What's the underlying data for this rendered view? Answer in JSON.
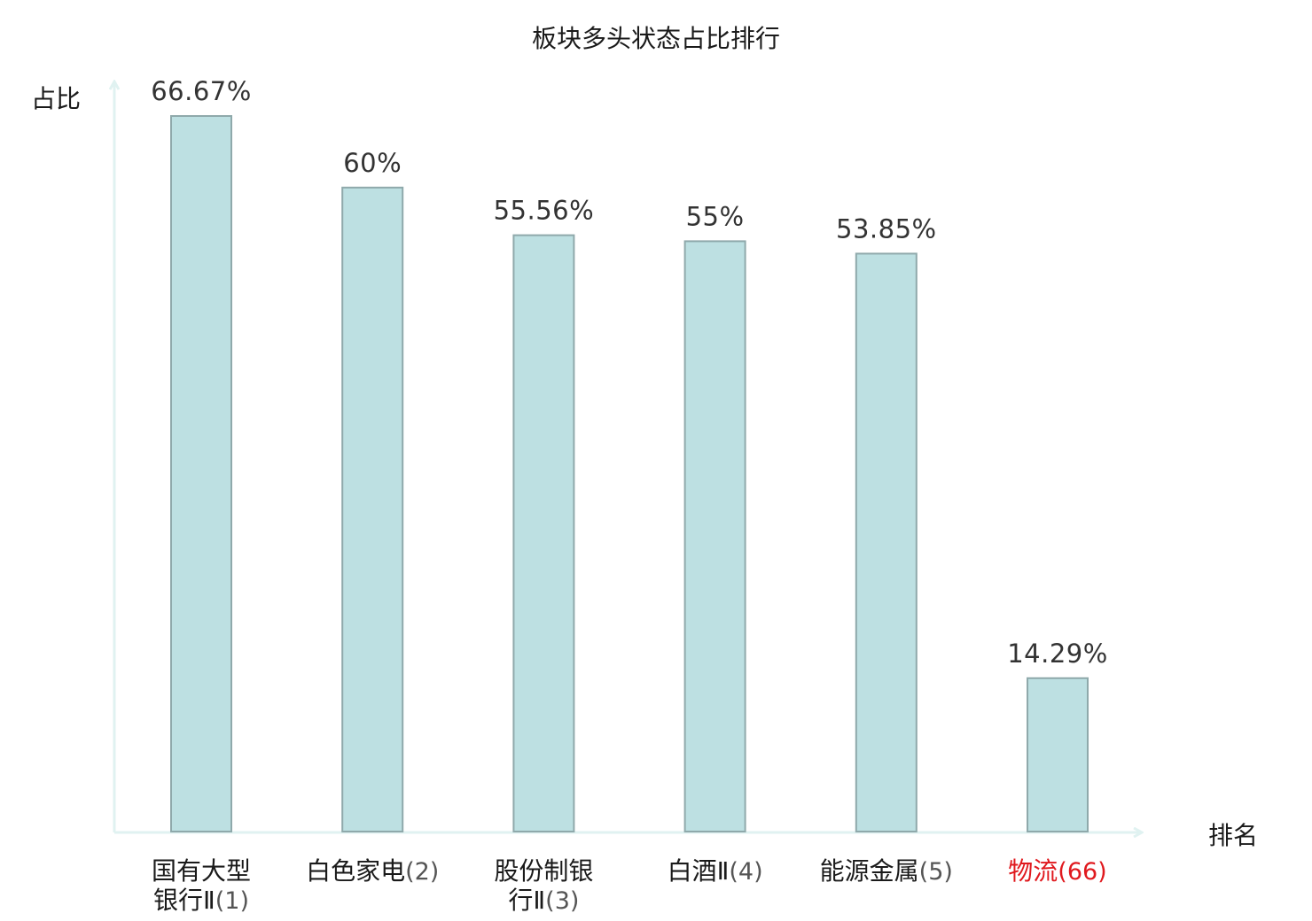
{
  "chart_data": {
    "type": "bar",
    "title": "板块多头状态占比排行",
    "xlabel": "排名",
    "ylabel": "占比",
    "categories": [
      "国有大型银行Ⅱ",
      "白色家电",
      "股份制银行Ⅱ",
      "白酒Ⅱ",
      "能源金属",
      "物流"
    ],
    "ranks": [
      "(1)",
      "(2)",
      "(3)",
      "(4)",
      "(5)",
      "(66)"
    ],
    "values": [
      66.67,
      60,
      55.56,
      55,
      53.85,
      14.29
    ],
    "value_labels": [
      "66.67%",
      "60%",
      "55.56%",
      "55%",
      "53.85%",
      "14.29%"
    ],
    "highlight_index": 5,
    "ylim": [
      0,
      66.67
    ],
    "grid": false,
    "colors": {
      "bar_fill": "#bde0e2",
      "bar_stroke": "#8fa9ab",
      "axis": "#e0f2f1",
      "text": "#1a1a1a",
      "rank_text": "#555555",
      "value_text": "#333333",
      "highlight": "#e0191e"
    }
  }
}
